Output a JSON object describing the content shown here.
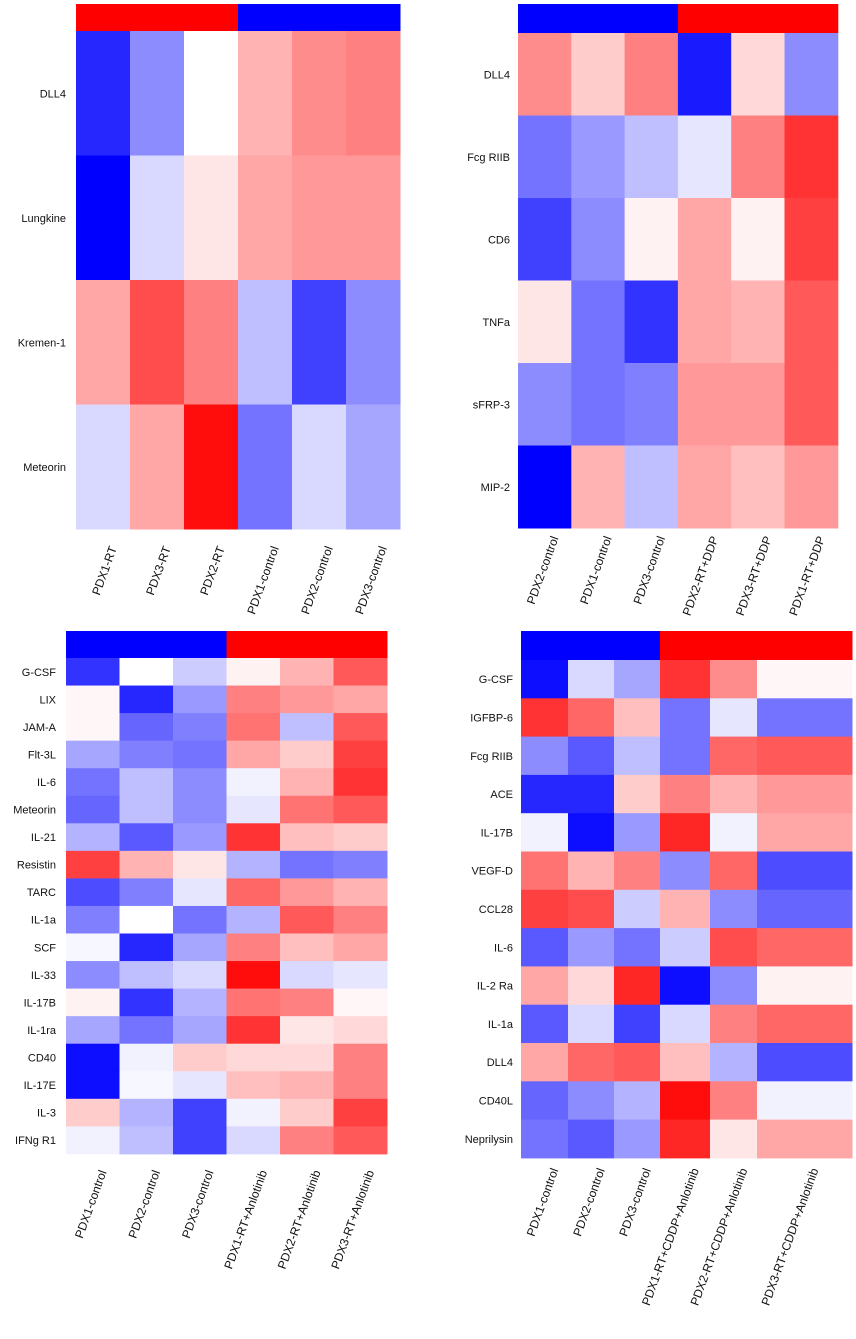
{
  "colors": {
    "low": "#0000ff",
    "mid": "#ffffff",
    "high": "#ff0000"
  },
  "chart_data": [
    {
      "type": "heatmap",
      "title": "",
      "rows": [
        "DLL4",
        "Lungkine",
        "Kremen-1",
        "Meteorin"
      ],
      "columns": [
        "PDX1-RT",
        "PDX3-RT",
        "PDX2-RT",
        "PDX1-control",
        "PDX2-control",
        "PDX3-control"
      ],
      "group_bar": [
        "red",
        "red",
        "red",
        "blue",
        "blue",
        "blue"
      ],
      "values": [
        [
          -0.85,
          -0.45,
          0.0,
          0.3,
          0.45,
          0.5
        ],
        [
          -1.0,
          -0.15,
          0.1,
          0.35,
          0.4,
          0.4
        ],
        [
          0.35,
          0.7,
          0.5,
          -0.25,
          -0.75,
          -0.45
        ],
        [
          -0.15,
          0.35,
          0.95,
          -0.55,
          -0.15,
          -0.35
        ]
      ],
      "value_range": [
        -1,
        1
      ]
    },
    {
      "type": "heatmap",
      "title": "",
      "rows": [
        "DLL4",
        "Fcg RIIB",
        "CD6",
        "TNFa",
        "sFRP-3",
        "MIP-2"
      ],
      "columns": [
        "PDX2-control",
        "PDX1-control",
        "PDX3-control",
        "PDX2-RT+DDP",
        "PDX3-RT+DDP",
        "PDX1-RT+DDP"
      ],
      "group_bar": [
        "blue",
        "blue",
        "blue",
        "red",
        "red",
        "red"
      ],
      "values": [
        [
          0.45,
          0.2,
          0.5,
          -0.9,
          0.15,
          -0.45
        ],
        [
          -0.55,
          -0.4,
          -0.25,
          -0.1,
          0.5,
          0.8
        ],
        [
          -0.75,
          -0.45,
          0.05,
          0.35,
          0.05,
          0.75
        ],
        [
          0.1,
          -0.55,
          -0.8,
          0.35,
          0.3,
          0.65
        ],
        [
          -0.45,
          -0.55,
          -0.5,
          0.4,
          0.4,
          0.65
        ],
        [
          -1.0,
          0.3,
          -0.25,
          0.35,
          0.25,
          0.4
        ]
      ],
      "value_range": [
        -1,
        1
      ]
    },
    {
      "type": "heatmap",
      "title": "",
      "rows": [
        "G-CSF",
        "LIX",
        "JAM-A",
        "Flt-3L",
        "IL-6",
        "Meteorin",
        "IL-21",
        "Resistin",
        "TARC",
        "IL-1a",
        "SCF",
        "IL-33",
        "IL-17B",
        "IL-1ra",
        "CD40",
        "IL-17E",
        "IL-3",
        "IFNg R1"
      ],
      "columns": [
        "PDX1-control",
        "PDX2-control",
        "PDX3-control",
        "PDX1-RT+Anlotinib",
        "PDX2-RT+Anlotinib",
        "PDX3-RT+Anlotinib"
      ],
      "group_bar": [
        "blue",
        "blue",
        "blue",
        "red",
        "red",
        "red"
      ],
      "values": [
        [
          -0.8,
          0.0,
          -0.2,
          0.05,
          0.3,
          0.65
        ],
        [
          0.03,
          -0.85,
          -0.4,
          0.5,
          0.4,
          0.35
        ],
        [
          0.03,
          -0.6,
          -0.5,
          0.55,
          -0.25,
          0.65
        ],
        [
          -0.35,
          -0.5,
          -0.55,
          0.35,
          0.2,
          0.75
        ],
        [
          -0.55,
          -0.25,
          -0.45,
          -0.05,
          0.3,
          0.8
        ],
        [
          -0.6,
          -0.25,
          -0.45,
          -0.1,
          0.55,
          0.65
        ],
        [
          -0.3,
          -0.65,
          -0.4,
          0.8,
          0.25,
          0.2
        ],
        [
          0.75,
          0.3,
          0.1,
          -0.3,
          -0.55,
          -0.5
        ],
        [
          -0.7,
          -0.5,
          -0.1,
          0.6,
          0.4,
          0.3
        ],
        [
          -0.5,
          0.0,
          -0.55,
          -0.3,
          0.65,
          0.5
        ],
        [
          -0.03,
          -0.85,
          -0.35,
          0.5,
          0.25,
          0.35
        ],
        [
          -0.45,
          -0.25,
          -0.15,
          0.95,
          -0.15,
          -0.1
        ],
        [
          0.05,
          -0.8,
          -0.3,
          0.55,
          0.5,
          0.03
        ],
        [
          -0.35,
          -0.55,
          -0.35,
          0.8,
          0.1,
          0.15
        ],
        [
          -0.95,
          -0.05,
          0.2,
          0.15,
          0.15,
          0.5
        ],
        [
          -0.95,
          -0.03,
          -0.1,
          0.25,
          0.3,
          0.5
        ],
        [
          0.2,
          -0.3,
          -0.75,
          -0.05,
          0.2,
          0.75
        ],
        [
          -0.05,
          -0.25,
          -0.75,
          -0.15,
          0.5,
          0.65
        ]
      ],
      "value_range": [
        -1,
        1
      ]
    },
    {
      "type": "heatmap",
      "title": "",
      "rows": [
        "G-CSF",
        "IGFBP-6",
        "Fcg RIIB",
        "ACE",
        "IL-17B",
        "VEGF-D",
        "CCL28",
        "IL-6",
        "IL-2 Ra",
        "IL-1a",
        "DLL4",
        "CD40L",
        "Neprilysin"
      ],
      "columns": [
        "PDX1-control",
        "PDX2-control",
        "PDX3-control",
        "PDX1-RT+CDDP+Anlotinib",
        "PDX2-RT+CDDP+Anlotinib",
        "PDX3-RT+CDDP+Anlotinib"
      ],
      "group_bar": [
        "blue",
        "blue",
        "blue",
        "red",
        "red",
        "red"
      ],
      "values": [
        [
          -0.95,
          -0.15,
          -0.35,
          0.8,
          0.45,
          0.03
        ],
        [
          0.8,
          0.6,
          0.25,
          -0.55,
          -0.1,
          -0.55
        ],
        [
          -0.45,
          -0.65,
          -0.25,
          -0.55,
          0.6,
          0.65
        ],
        [
          -0.85,
          -0.85,
          0.2,
          0.5,
          0.3,
          0.4
        ],
        [
          -0.05,
          -0.95,
          -0.4,
          0.85,
          -0.05,
          0.35
        ],
        [
          0.55,
          0.3,
          0.5,
          -0.45,
          0.6,
          -0.7
        ],
        [
          0.75,
          0.7,
          -0.2,
          0.3,
          -0.45,
          -0.6
        ],
        [
          -0.65,
          -0.4,
          -0.55,
          -0.2,
          0.7,
          0.6
        ],
        [
          0.35,
          0.15,
          0.85,
          -0.95,
          -0.45,
          0.05
        ],
        [
          -0.65,
          -0.15,
          -0.75,
          -0.15,
          0.5,
          0.6
        ],
        [
          0.35,
          0.6,
          0.65,
          0.25,
          -0.3,
          -0.7
        ],
        [
          -0.6,
          -0.45,
          -0.3,
          0.95,
          0.5,
          -0.05
        ],
        [
          -0.55,
          -0.65,
          -0.4,
          0.85,
          0.1,
          0.35
        ]
      ],
      "value_range": [
        -1,
        1
      ]
    }
  ]
}
